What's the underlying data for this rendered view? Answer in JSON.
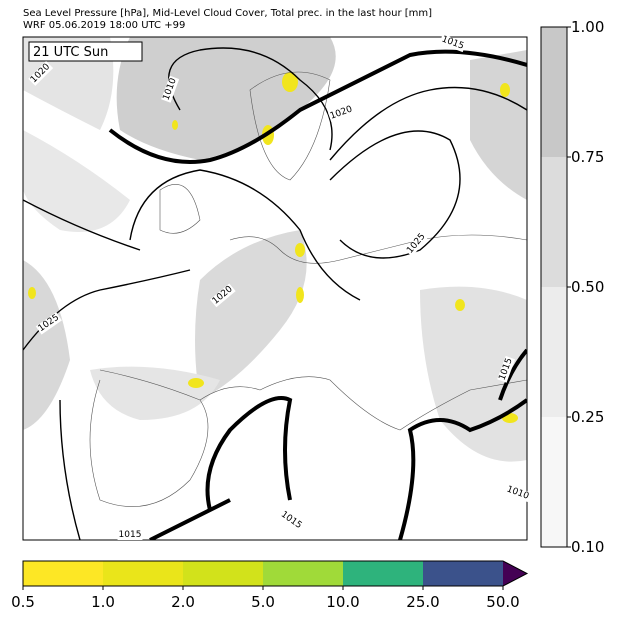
{
  "header": {
    "line1": "Sea Level Pressure [hPa], Mid-Level Cloud Cover, Total prec. in the last hour [mm]",
    "line2": "WRF 05.06.2019 18:00 UTC +99"
  },
  "map": {
    "time_label": "21 UTC Sun",
    "isobar_labels": [
      "1015",
      "1010",
      "1020",
      "1020",
      "1025",
      "1020",
      "1025",
      "1015",
      "1010",
      "1015",
      "1015"
    ]
  },
  "cloud_colorbar": {
    "colors": [
      "#f7f7f7",
      "#ececec",
      "#dcdcdc",
      "#c8c8c8"
    ],
    "ticks": [
      {
        "value": 0.1,
        "label": "0.10"
      },
      {
        "value": 0.25,
        "label": "0.25"
      },
      {
        "value": 0.5,
        "label": "0.50"
      },
      {
        "value": 0.75,
        "label": "0.75"
      },
      {
        "value": 1,
        "label": "1.00"
      }
    ]
  },
  "precip_colorbar": {
    "colors": [
      "#fde725",
      "#eae51a",
      "#d2e21b",
      "#a0da39",
      "#2eb37c",
      "#3b528b",
      "#440154"
    ],
    "ticks": [
      {
        "value": 0.5,
        "label": "0.5"
      },
      {
        "value": 1,
        "label": "1.0"
      },
      {
        "value": 2,
        "label": "2.0"
      },
      {
        "value": 5,
        "label": "5.0"
      },
      {
        "value": 10,
        "label": "10.0"
      },
      {
        "value": 25,
        "label": "25.0"
      },
      {
        "value": 50,
        "label": "50.0"
      }
    ]
  }
}
